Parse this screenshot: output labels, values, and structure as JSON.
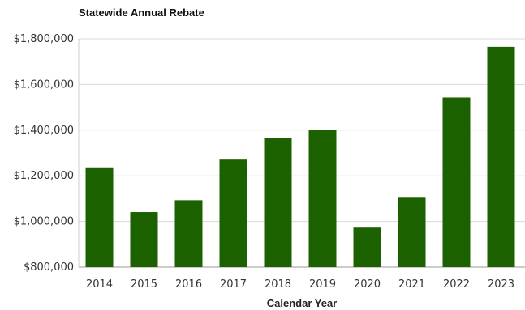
{
  "chart_data": {
    "type": "bar",
    "title": "Statewide Annual Rebate",
    "xlabel": "Calendar Year",
    "ylabel": "",
    "categories": [
      "2014",
      "2015",
      "2016",
      "2017",
      "2018",
      "2019",
      "2020",
      "2021",
      "2022",
      "2023"
    ],
    "values": [
      1237000,
      1041000,
      1093000,
      1271000,
      1364000,
      1400000,
      973000,
      1104000,
      1543000,
      1765000
    ],
    "ylim": [
      800000,
      1800000
    ],
    "yticks": [
      800000,
      1000000,
      1200000,
      1400000,
      1600000,
      1800000
    ],
    "ytick_labels": [
      "$800,000",
      "$1,000,000",
      "$1,200,000",
      "$1,400,000",
      "$1,600,000",
      "$1,800,000"
    ],
    "grid": true,
    "bar_color": "#1b6100",
    "grid_color": "#d9d9d9"
  }
}
